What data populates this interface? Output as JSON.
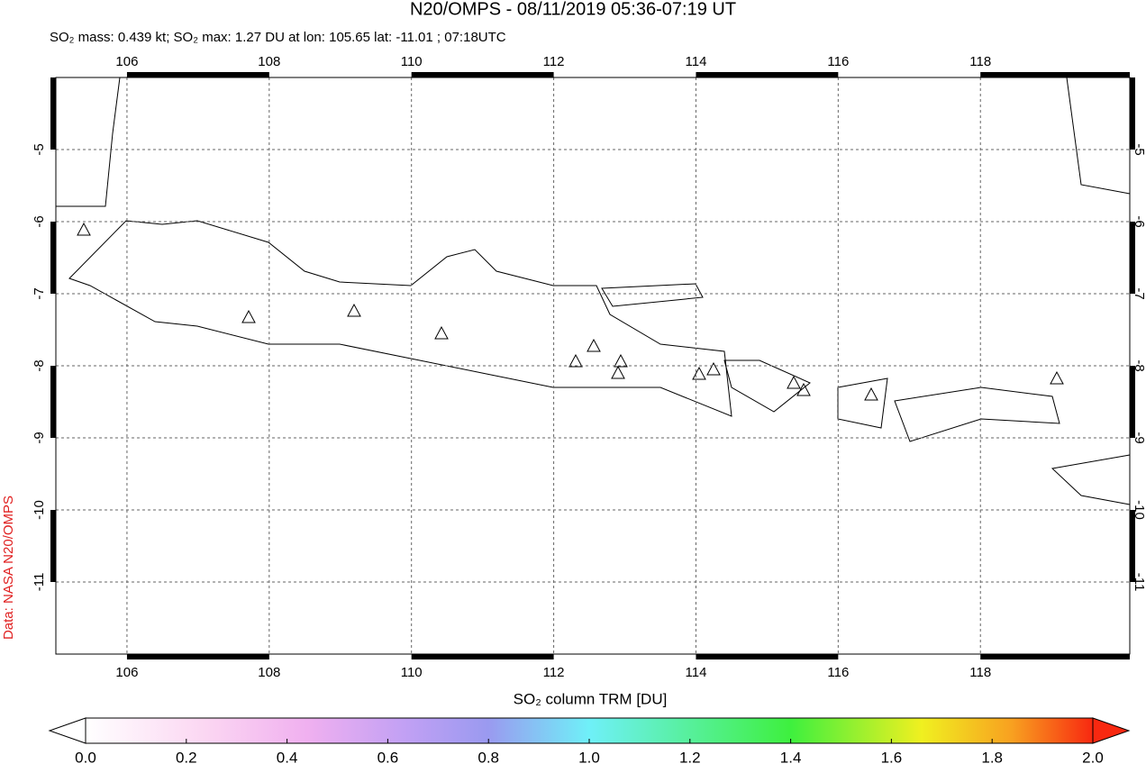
{
  "chart_data": {
    "type": "map",
    "title": "N20/OMPS - 08/11/2019 05:36-07:19 UT",
    "subtitle": "SO₂ mass: 0.439 kt; SO₂ max: 1.27 DU at lon: 105.65 lat: -11.01 ; 07:18UTC",
    "xlim": [
      105,
      120.1
    ],
    "ylim": [
      -12,
      -4
    ],
    "xticks": [
      106,
      108,
      110,
      112,
      114,
      116,
      118
    ],
    "yticks": [
      -5,
      -6,
      -7,
      -8,
      -9,
      -10,
      -11
    ],
    "grid": true,
    "colorbar_label": "SO₂ column TRM [DU]",
    "clim": [
      0,
      2
    ],
    "cticks": [
      {
        "value": 0,
        "label": "0.0"
      },
      {
        "value": 0.2,
        "label": "0.2"
      },
      {
        "value": 0.4,
        "label": "0.4"
      },
      {
        "value": 0.6,
        "label": "0.6"
      },
      {
        "value": 0.8,
        "label": "0.8"
      },
      {
        "value": 1,
        "label": "1.0"
      },
      {
        "value": 1.2,
        "label": "1.2"
      },
      {
        "value": 1.4,
        "label": "1.4"
      },
      {
        "value": 1.6,
        "label": "1.6"
      },
      {
        "value": 1.8,
        "label": "1.8"
      },
      {
        "value": 2,
        "label": "2.0"
      }
    ],
    "credit": "Data: NASA N20/OMPS"
  }
}
